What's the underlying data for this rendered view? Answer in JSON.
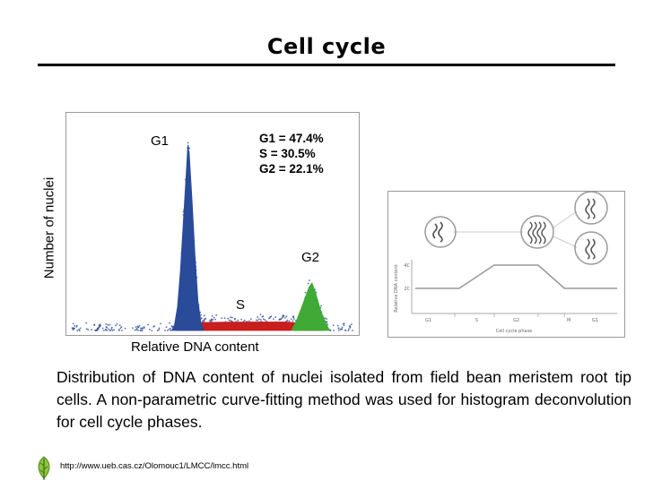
{
  "slide": {
    "title": "Cell cycle",
    "caption": "Distribution of DNA content of nuclei isolated from field bean meristem root tip cells. A non-parametric curve-fitting method was used for histogram deconvolution for cell cycle phases.",
    "source_url": "http://www.ueb.cas.cz/Olomouc1/LMCC/lmcc.html"
  },
  "chart_data": [
    {
      "type": "area",
      "title": "",
      "xlabel": "Relative DNA content",
      "ylabel": "Number of nuclei",
      "peak_labels": {
        "g1": "G1",
        "s": "S",
        "g2": "G2"
      },
      "annotations": [
        "G1 = 47.4%",
        "S = 30.5%",
        "G2 = 22.1%"
      ],
      "xlim": [
        0,
        100
      ],
      "ylim": [
        0,
        100
      ],
      "series": [
        {
          "name": "G1",
          "color": "#2a4a9a",
          "points": [
            [
              36,
              0
            ],
            [
              37,
              3
            ],
            [
              38,
              12
            ],
            [
              39,
              30
            ],
            [
              40,
              55
            ],
            [
              41,
              80
            ],
            [
              41.5,
              93
            ],
            [
              42,
              90
            ],
            [
              43,
              65
            ],
            [
              44,
              38
            ],
            [
              45,
              15
            ],
            [
              46,
              4
            ],
            [
              47,
              0
            ]
          ]
        },
        {
          "name": "S",
          "color": "#c81e1e",
          "points": [
            [
              38,
              0
            ],
            [
              40,
              2.5
            ],
            [
              45,
              4
            ],
            [
              55,
              4.2
            ],
            [
              65,
              4.3
            ],
            [
              75,
              4.3
            ],
            [
              82,
              3.5
            ],
            [
              88,
              0
            ]
          ]
        },
        {
          "name": "G2",
          "color": "#3faa35",
          "points": [
            [
              77,
              0
            ],
            [
              79,
              6
            ],
            [
              81,
              14
            ],
            [
              83,
              22
            ],
            [
              84,
              24
            ],
            [
              85,
              20
            ],
            [
              87,
              10
            ],
            [
              89,
              3
            ],
            [
              90,
              0
            ]
          ]
        }
      ]
    },
    {
      "type": "line",
      "xlabel": "Cell cycle phase",
      "ylabel": "Relative DNA content",
      "categories": [
        "G1",
        "S",
        "G2",
        "M",
        "G1"
      ],
      "y_ticks": [
        "4C",
        "2C"
      ],
      "x": [
        0,
        1,
        1.8,
        2.8,
        3.4,
        3.6,
        4.6
      ],
      "values": [
        2,
        2,
        4,
        4,
        2,
        2,
        2
      ]
    }
  ]
}
